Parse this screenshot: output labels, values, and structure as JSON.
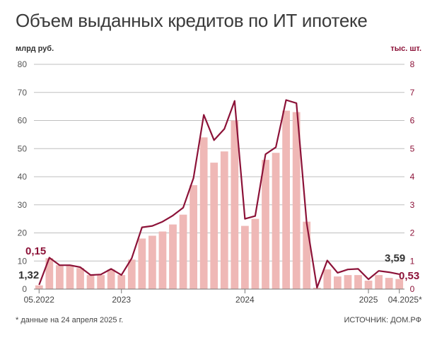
{
  "title": "Объем выданных кредитов по ИТ ипотеке",
  "note": "* данные на 24 апреля 2025 г.",
  "source": "ИСТОЧНИК: ДОМ.РФ",
  "colors": {
    "bars": "#efb8b6",
    "line": "#8c1238",
    "grid": "#bfbfbf",
    "axis": "#777777"
  },
  "chart_data": {
    "type": "bar+line",
    "title": "Объем выданных кредитов по ИТ ипотеке",
    "left_axis": {
      "label": "млрд руб.",
      "ylim": [
        0,
        80
      ],
      "ticks": [
        0,
        10,
        20,
        30,
        40,
        50,
        60,
        70,
        80
      ]
    },
    "right_axis": {
      "label": "тыс. шт.",
      "ylim": [
        0,
        8
      ],
      "ticks": [
        0,
        1,
        2,
        3,
        4,
        5,
        6,
        7,
        8
      ]
    },
    "grid": true,
    "x_tick_labels": [
      {
        "index": 0,
        "label": "05.2022"
      },
      {
        "index": 8,
        "label": "2023"
      },
      {
        "index": 20,
        "label": "2024"
      },
      {
        "index": 32,
        "label": "2025"
      },
      {
        "index": 35,
        "label": "04.2025*"
      }
    ],
    "categories": [
      "05.2022",
      "06.2022",
      "07.2022",
      "08.2022",
      "09.2022",
      "10.2022",
      "11.2022",
      "12.2022",
      "01.2023",
      "02.2023",
      "03.2023",
      "04.2023",
      "05.2023",
      "06.2023",
      "07.2023",
      "08.2023",
      "09.2023",
      "10.2023",
      "11.2023",
      "12.2023",
      "01.2024",
      "02.2024",
      "03.2024",
      "04.2024",
      "05.2024",
      "06.2024",
      "07.2024",
      "08.2024",
      "09.2024",
      "10.2024",
      "11.2024",
      "12.2024",
      "01.2025",
      "02.2025",
      "03.2025",
      "04.2025"
    ],
    "series": [
      {
        "name": "млрд руб.",
        "kind": "bar",
        "axis": "left",
        "values": [
          1.32,
          11,
          8.5,
          8.5,
          7.5,
          5,
          5,
          7,
          5,
          10.5,
          18,
          19,
          20.5,
          23,
          26.5,
          37,
          54,
          45,
          49,
          60,
          22.5,
          25,
          46,
          48.5,
          63.5,
          63,
          24,
          0.5,
          7,
          4.5,
          5,
          5,
          3,
          5,
          4,
          3.59
        ]
      },
      {
        "name": "тыс. шт.",
        "kind": "line",
        "axis": "right",
        "values": [
          0.15,
          1.12,
          0.85,
          0.85,
          0.78,
          0.5,
          0.52,
          0.72,
          0.5,
          1.1,
          2.2,
          2.25,
          2.4,
          2.62,
          2.9,
          3.95,
          6.2,
          5.3,
          5.7,
          6.7,
          2.5,
          2.6,
          4.8,
          5.05,
          6.73,
          6.62,
          2.35,
          0.05,
          1.02,
          0.58,
          0.7,
          0.72,
          0.35,
          0.65,
          0.6,
          0.53
        ]
      }
    ],
    "annotations": [
      {
        "text": "0,15",
        "series": "тыс. шт.",
        "index": 0
      },
      {
        "text": "1,32",
        "series": "млрд руб.",
        "index": 0
      },
      {
        "text": "3,59",
        "series": "млрд руб.",
        "index": 35
      },
      {
        "text": "0,53",
        "series": "тыс. шт.",
        "index": 35
      }
    ]
  }
}
